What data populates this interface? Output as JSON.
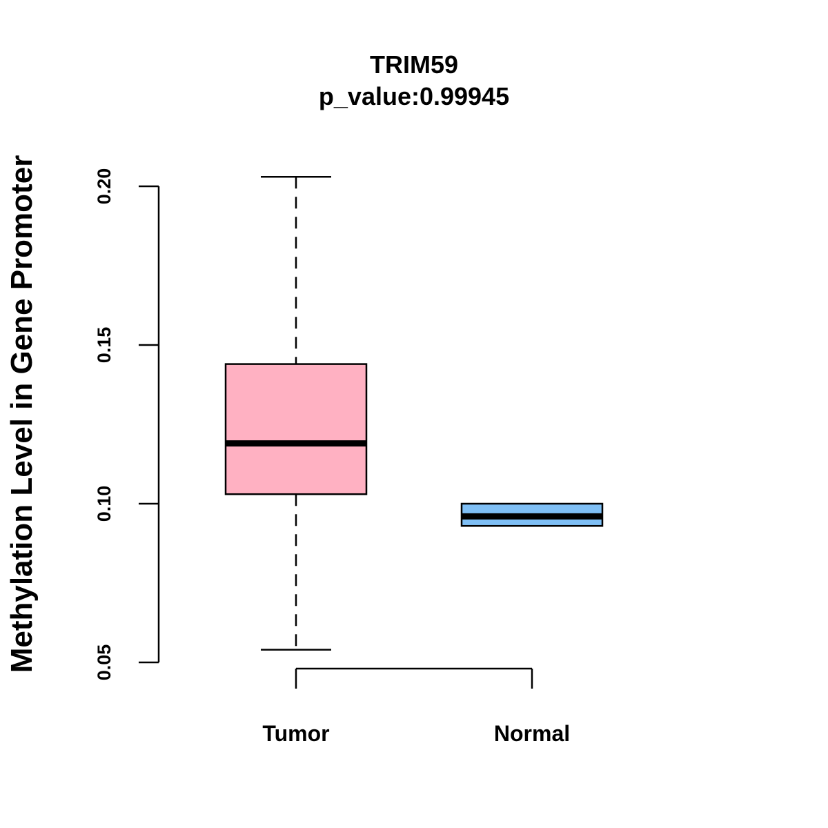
{
  "chart_data": {
    "type": "boxplot",
    "title": "TRIM59",
    "subtitle": "p_value:0.99945",
    "xlabel": "",
    "ylabel": "Methylation Level in Gene Promoter",
    "ylim": [
      0.045,
      0.205
    ],
    "yticks": [
      0.05,
      0.1,
      0.15,
      0.2
    ],
    "ytick_labels": [
      "0.05",
      "0.10",
      "0.15",
      "0.20"
    ],
    "grid": false,
    "categories": [
      "Tumor",
      "Normal"
    ],
    "boxes": [
      {
        "name": "Tumor",
        "color": "#FFB1C2",
        "whisker_low": 0.054,
        "q1": 0.103,
        "median": 0.119,
        "q3": 0.144,
        "whisker_high": 0.203
      },
      {
        "name": "Normal",
        "color": "#7FBFF5",
        "whisker_low": 0.093,
        "q1": 0.093,
        "median": 0.096,
        "q3": 0.1,
        "whisker_high": 0.1
      }
    ]
  }
}
